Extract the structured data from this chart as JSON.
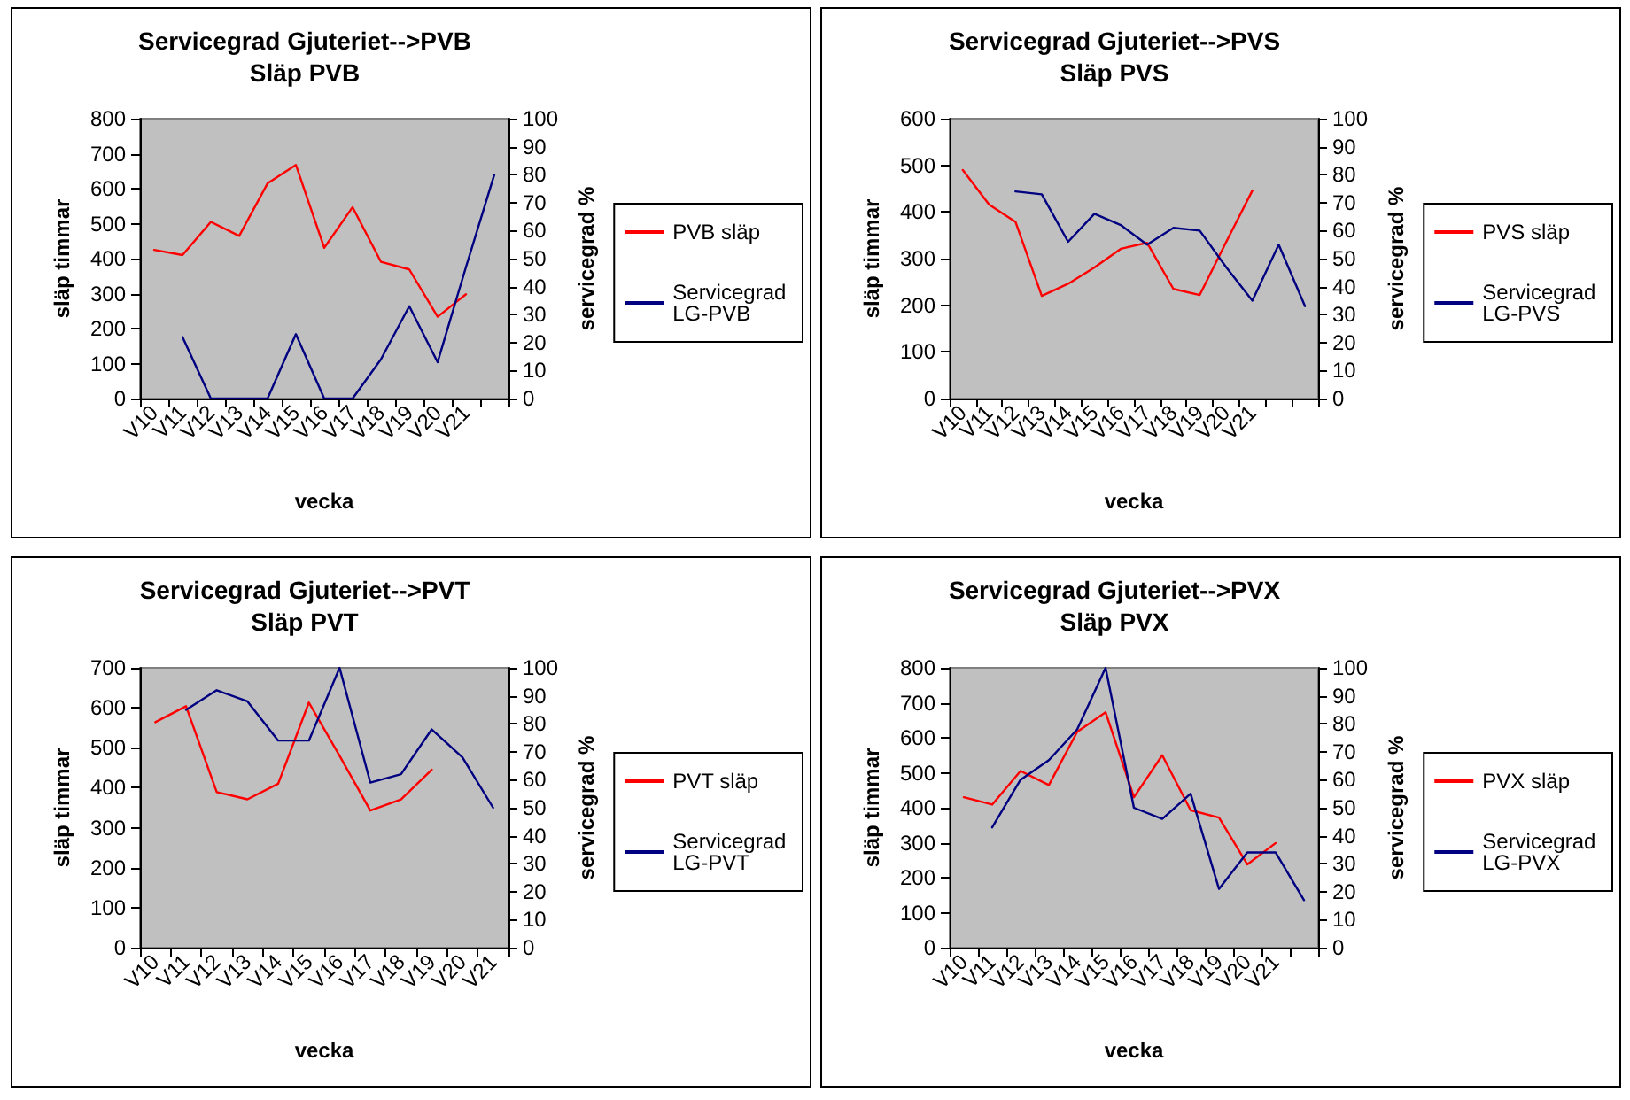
{
  "chart_data": [
    {
      "type": "line",
      "title": "Servicegrad Gjuteriet-->PVB",
      "subtitle": "Släp PVB",
      "xlabel": "vecka",
      "ylabel": "släp timmar",
      "y2label": "servicegrad %",
      "categories": [
        "V10",
        "V11",
        "V12",
        "V13",
        "V14",
        "V15",
        "V16",
        "V17",
        "V18",
        "V19",
        "V20",
        "V21",
        null
      ],
      "ylim": [
        0,
        800
      ],
      "yticks": [
        0,
        100,
        200,
        300,
        400,
        500,
        600,
        700,
        800
      ],
      "y2lim": [
        0,
        100
      ],
      "y2ticks": [
        0,
        10,
        20,
        30,
        40,
        50,
        60,
        70,
        80,
        90,
        100
      ],
      "legend": "right",
      "grid": false,
      "marker": "none",
      "line_style": "solid",
      "series": [
        {
          "name": "PVB släp",
          "color": "#ff0000",
          "values": [
            425,
            410,
            505,
            465,
            615,
            668,
            431,
            547,
            391,
            369,
            234,
            298,
            null
          ]
        },
        {
          "name": "Servicegrad LG-PVB",
          "color": "#000080",
          "axis": "y2",
          "values": [
            null,
            22,
            0,
            0,
            0,
            23,
            0,
            0,
            14,
            33,
            13,
            47,
            80
          ]
        }
      ]
    },
    {
      "type": "line",
      "title": "Servicegrad Gjuteriet-->PVS",
      "subtitle": "Släp PVS",
      "xlabel": "vecka",
      "ylabel": "släp timmar",
      "y2label": "servicegrad %",
      "categories": [
        "V10",
        "V11",
        "V12",
        "V13",
        "V14",
        "V15",
        "V16",
        "V17",
        "V18",
        "V19",
        "V20",
        "V21",
        null,
        null
      ],
      "ylim": [
        0,
        600
      ],
      "yticks": [
        0,
        100,
        200,
        300,
        400,
        500,
        600
      ],
      "y2lim": [
        0,
        100
      ],
      "y2ticks": [
        0,
        10,
        20,
        30,
        40,
        50,
        60,
        70,
        80,
        90,
        100
      ],
      "legend": "right",
      "grid": false,
      "marker": "none",
      "line_style": "solid",
      "series": [
        {
          "name": "PVS släp",
          "color": "#ff0000",
          "values": [
            490,
            416,
            379,
            220,
            246,
            281,
            321,
            334,
            235,
            222,
            335,
            446,
            null,
            null
          ]
        },
        {
          "name": "Servicegrad LG-PVS",
          "color": "#000080",
          "axis": "y2",
          "values": [
            null,
            null,
            74,
            73,
            56,
            66,
            62,
            55,
            61,
            60,
            47,
            35,
            55,
            33
          ]
        }
      ]
    },
    {
      "type": "line",
      "title": "Servicegrad Gjuteriet-->PVT",
      "subtitle": "Släp PVT",
      "xlabel": "vecka",
      "ylabel": "släp timmar",
      "y2label": "servicegrad %",
      "categories": [
        "V10",
        "V11",
        "V12",
        "V13",
        "V14",
        "V15",
        "V16",
        "V17",
        "V18",
        "V19",
        "V20",
        "V21"
      ],
      "ylim": [
        0,
        700
      ],
      "yticks": [
        0,
        100,
        200,
        300,
        400,
        500,
        600,
        700
      ],
      "y2lim": [
        0,
        100
      ],
      "y2ticks": [
        0,
        10,
        20,
        30,
        40,
        50,
        60,
        70,
        80,
        90,
        100
      ],
      "legend": "right",
      "grid": false,
      "marker": "none",
      "line_style": "solid",
      "series": [
        {
          "name": "PVT släp",
          "color": "#ff0000",
          "values": [
            564,
            604,
            389,
            371,
            410,
            613,
            480,
            343,
            371,
            445,
            null,
            null
          ]
        },
        {
          "name": "Servicegrad LG-PVT",
          "color": "#000080",
          "axis": "y2",
          "values": [
            null,
            85,
            92,
            88,
            74,
            74,
            100,
            59,
            62,
            78,
            68,
            50
          ]
        }
      ]
    },
    {
      "type": "line",
      "title": "Servicegrad Gjuteriet-->PVX",
      "subtitle": "Släp PVX",
      "xlabel": "vecka",
      "ylabel": "släp timmar",
      "y2label": "servicegrad %",
      "categories": [
        "V10",
        "V11",
        "V12",
        "V13",
        "V14",
        "V15",
        "V16",
        "V17",
        "V18",
        "V19",
        "V20",
        "V21",
        null
      ],
      "ylim": [
        0,
        800
      ],
      "yticks": [
        0,
        100,
        200,
        300,
        400,
        500,
        600,
        700,
        800
      ],
      "y2lim": [
        0,
        100
      ],
      "y2ticks": [
        0,
        10,
        20,
        30,
        40,
        50,
        60,
        70,
        80,
        90,
        100
      ],
      "legend": "right",
      "grid": false,
      "marker": "none",
      "line_style": "solid",
      "series": [
        {
          "name": "PVX släp",
          "color": "#ff0000",
          "values": [
            430,
            409,
            505,
            465,
            617,
            673,
            430,
            550,
            393,
            372,
            238,
            299,
            null
          ]
        },
        {
          "name": "Servicegrad LG-PVX",
          "color": "#000080",
          "axis": "y2",
          "values": [
            null,
            43,
            60,
            67,
            78,
            100,
            50,
            46,
            55,
            21,
            34,
            34,
            17
          ]
        }
      ]
    }
  ]
}
